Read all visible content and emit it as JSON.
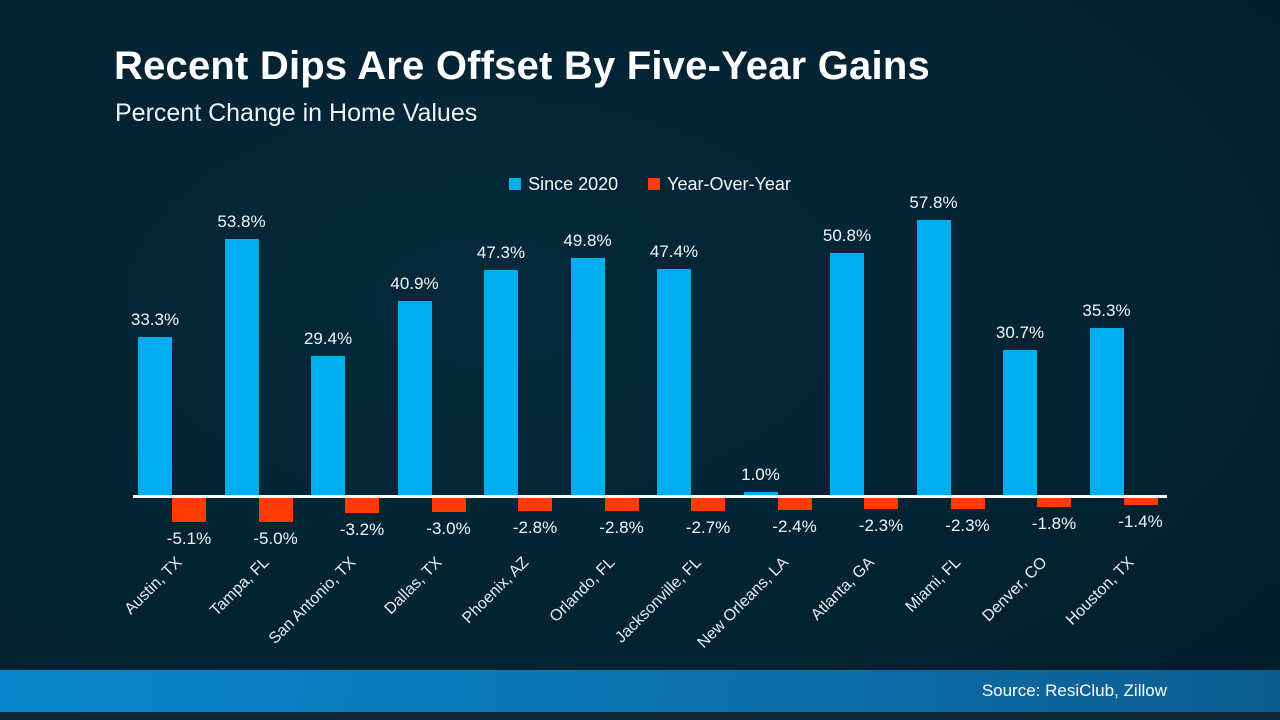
{
  "header": {
    "title": "Recent Dips Are Offset By Five-Year Gains",
    "subtitle": "Percent Change in Home Values"
  },
  "footer": {
    "source": "Source: ResiClub, Zillow"
  },
  "colors": {
    "since_2020": "#00AEEF",
    "year_over_year": "#FF3B00",
    "axis": "#FFFFFF",
    "background_dark": "#032231",
    "footer_blue": "#0884CC",
    "text": "#FFFFFF"
  },
  "chart_data": {
    "type": "bar",
    "title": "Percent Change in Home Values",
    "categories": [
      "Austin, TX",
      "Tampa, FL",
      "San Antonio, TX",
      "Dallas, TX",
      "Phoenix, AZ",
      "Orlando, FL",
      "Jacksonville, FL",
      "New Orleans, LA",
      "Atlanta, GA",
      "Miami, FL",
      "Denver, CO",
      "Houston, TX"
    ],
    "series": [
      {
        "name": "Since 2020",
        "color": "#00AEEF",
        "values": [
          33.3,
          53.8,
          29.4,
          40.9,
          47.3,
          49.8,
          47.4,
          1.0,
          50.8,
          57.8,
          30.7,
          35.3
        ],
        "labels": [
          "33.3%",
          "53.8%",
          "29.4%",
          "40.9%",
          "47.3%",
          "49.8%",
          "47.4%",
          "1.0%",
          "50.8%",
          "57.8%",
          "30.7%",
          "35.3%"
        ]
      },
      {
        "name": "Year-Over-Year",
        "color": "#FF3B00",
        "values": [
          -5.1,
          -5.0,
          -3.2,
          -3.0,
          -2.8,
          -2.8,
          -2.7,
          -2.4,
          -2.3,
          -2.3,
          -1.8,
          -1.4
        ],
        "labels": [
          "-5.1%",
          "-5.0%",
          "-3.2%",
          "-3.0%",
          "-2.8%",
          "-2.8%",
          "-2.7%",
          "-2.4%",
          "-2.3%",
          "-2.3%",
          "-1.8%",
          "-1.4%"
        ]
      }
    ],
    "value_labels_shown": true,
    "grid": false,
    "legend_position": "top-center",
    "x_axis_label_rotation_deg": 45,
    "baseline_value": 0
  }
}
